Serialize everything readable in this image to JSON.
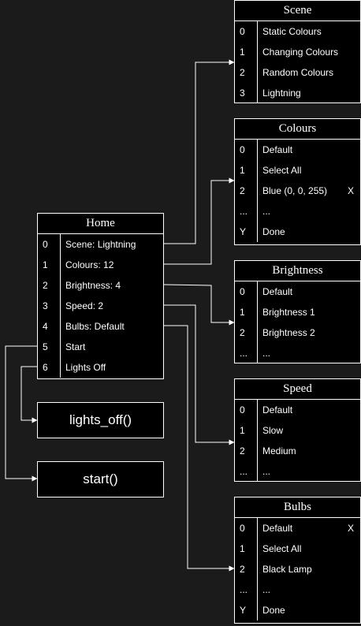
{
  "tables": {
    "home": {
      "title": "Home",
      "rows": [
        {
          "key": "0",
          "value": "Scene: Lightning"
        },
        {
          "key": "1",
          "value": "Colours: 12"
        },
        {
          "key": "2",
          "value": "Brightness: 4"
        },
        {
          "key": "3",
          "value": "Speed: 2"
        },
        {
          "key": "4",
          "value": "Bulbs: Default"
        },
        {
          "key": "5",
          "value": "Start"
        },
        {
          "key": "6",
          "value": "Lights Off"
        }
      ]
    },
    "scene": {
      "title": "Scene",
      "rows": [
        {
          "key": "0",
          "value": "Static Colours"
        },
        {
          "key": "1",
          "value": "Changing Colours"
        },
        {
          "key": "2",
          "value": "Random Colours"
        },
        {
          "key": "3",
          "value": "Lightning"
        }
      ]
    },
    "colours": {
      "title": "Colours",
      "rows": [
        {
          "key": "0",
          "value": "Default"
        },
        {
          "key": "1",
          "value": "Select All"
        },
        {
          "key": "2",
          "value": "Blue (0, 0, 255)",
          "mark": "X"
        },
        {
          "key": "...",
          "value": "..."
        },
        {
          "key": "Y",
          "value": "Done"
        }
      ]
    },
    "brightness": {
      "title": "Brightness",
      "rows": [
        {
          "key": "0",
          "value": "Default"
        },
        {
          "key": "1",
          "value": "Brightness 1"
        },
        {
          "key": "2",
          "value": "Brightness 2"
        },
        {
          "key": "...",
          "value": "..."
        }
      ]
    },
    "speed": {
      "title": "Speed",
      "rows": [
        {
          "key": "0",
          "value": "Default"
        },
        {
          "key": "1",
          "value": "Slow"
        },
        {
          "key": "2",
          "value": "Medium"
        },
        {
          "key": "...",
          "value": "..."
        }
      ]
    },
    "bulbs": {
      "title": "Bulbs",
      "rows": [
        {
          "key": "0",
          "value": "Default",
          "mark": "X"
        },
        {
          "key": "1",
          "value": "Select All"
        },
        {
          "key": "2",
          "value": "Black Lamp"
        },
        {
          "key": "...",
          "value": "..."
        },
        {
          "key": "Y",
          "value": "Done"
        }
      ]
    }
  },
  "functions": {
    "lights_off": "lights_off()",
    "start": "start()"
  },
  "colors": {
    "background": "#1b1b1b",
    "box_fill": "#000000",
    "stroke": "#ffffff",
    "text": "#ffffff"
  }
}
